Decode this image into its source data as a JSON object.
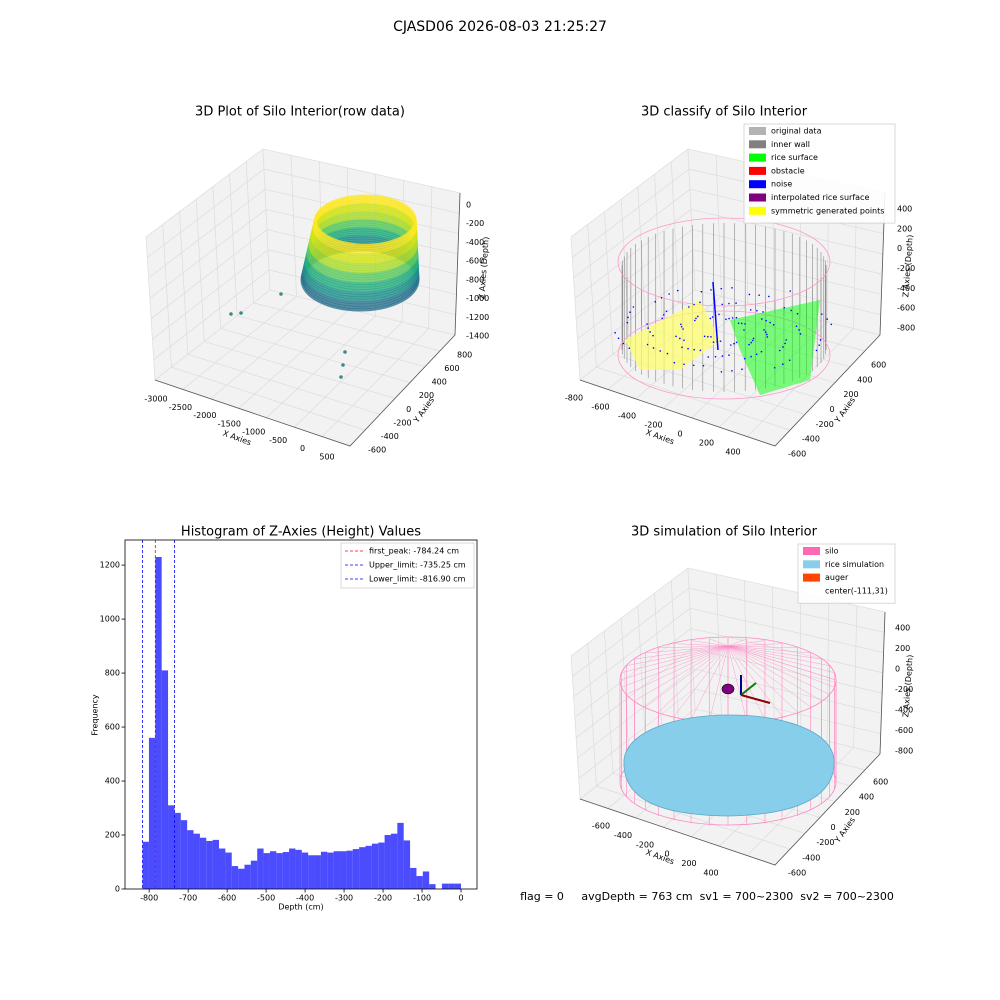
{
  "title": "CJASD06 2026-08-03 21:25:27",
  "chart_data": [
    {
      "type": "scatter3d",
      "title": "3D Plot of Silo Interior(row data)",
      "x_label": "X Axies",
      "y_label": "Y Axies",
      "z_label": "Z Axies (Depth)",
      "xticks": [
        -3000,
        -2500,
        -2000,
        -1500,
        -1000,
        -500,
        0,
        500
      ],
      "yticks": [
        -600,
        -400,
        -200,
        0,
        200,
        400,
        600,
        800
      ],
      "zticks": [
        0,
        -200,
        -400,
        -600,
        -800,
        -1000,
        -1200,
        -1400
      ]
    },
    {
      "type": "scatter3d",
      "title": "3D classify of Silo Interior",
      "x_label": "X Axies",
      "y_label": "Y Axies",
      "z_label": "Z Axies (Depth)",
      "xticks": [
        -800,
        -600,
        -400,
        -200,
        0,
        200,
        400
      ],
      "yticks": [
        -600,
        -400,
        -200,
        0,
        200,
        400,
        600
      ],
      "zticks": [
        400,
        200,
        0,
        -200,
        -400,
        -600,
        -800
      ],
      "legend": [
        {
          "name": "original data",
          "color": "#b3b3b3"
        },
        {
          "name": "inner wall",
          "color": "#808080"
        },
        {
          "name": "rice surface",
          "color": "#00ff00"
        },
        {
          "name": "obstacle",
          "color": "#ff0000"
        },
        {
          "name": "noise",
          "color": "#0000ff"
        },
        {
          "name": "interpolated rice surface",
          "color": "#800080"
        },
        {
          "name": "symmetric generated points",
          "color": "#ffff00"
        }
      ]
    },
    {
      "type": "histogram",
      "title": "Histogram of Z-Axies (Height) Values",
      "x_label": "Depth (cm)",
      "y_label": "Frequency",
      "color": "#0000ff",
      "bins": [
        -816.9,
        -800.56,
        -784.22,
        -767.89,
        -751.55,
        -735.21,
        -718.87,
        -702.53,
        -686.2,
        -669.86,
        -653.52,
        -637.18,
        -620.84,
        -604.51,
        -588.17,
        -571.83,
        -555.49,
        -539.15,
        -522.82,
        -506.48,
        -490.14,
        -473.8,
        -457.46,
        -441.13,
        -424.79,
        -408.45,
        -392.11,
        -375.77,
        -359.44,
        -343.1,
        -326.76,
        -310.42,
        -294.08,
        -277.75,
        -261.41,
        -245.07,
        -228.73,
        -212.39,
        -196.06,
        -179.72,
        -163.38,
        -147.04,
        -130.7,
        -114.37,
        -98.03,
        -81.69,
        -65.35,
        -49.01,
        -32.68,
        -16.34,
        0
      ],
      "values": [
        175,
        560,
        1230,
        810,
        310,
        282,
        255,
        218,
        205,
        190,
        178,
        182,
        150,
        135,
        85,
        75,
        90,
        105,
        150,
        133,
        140,
        133,
        137,
        150,
        145,
        135,
        125,
        125,
        138,
        135,
        140,
        140,
        142,
        148,
        155,
        160,
        168,
        172,
        200,
        205,
        245,
        180,
        78,
        48,
        65,
        18,
        0,
        20,
        20,
        20
      ],
      "xlim": [
        -862,
        41
      ],
      "ylim": [
        0,
        1293
      ],
      "xticks": [
        -800,
        -700,
        -600,
        -500,
        -400,
        -300,
        -200,
        -100,
        0
      ],
      "yticks": [
        0,
        200,
        400,
        600,
        800,
        1000,
        1200
      ],
      "lines": [
        {
          "label": "first_peak: -784.24 cm",
          "value": -784.24,
          "color": "#ff0000"
        },
        {
          "label": "Upper_limit: -735.25 cm",
          "value": -735.25,
          "color": "#0000ff"
        },
        {
          "label": "Lower_limit: -816.90 cm",
          "value": -816.9,
          "color": "#0000ff"
        }
      ],
      "legend_position": "upper right"
    },
    {
      "type": "surface3d",
      "title": "3D simulation of Silo Interior",
      "x_label": "X Axies",
      "y_label": "Y Axies",
      "z_label": "Z Axies (Depth)",
      "xticks": [
        -600,
        -400,
        -200,
        0,
        200,
        400
      ],
      "yticks": [
        -600,
        -400,
        -200,
        0,
        200,
        400,
        600
      ],
      "zticks": [
        400,
        200,
        0,
        -200,
        -400,
        -600,
        -800
      ],
      "legend": [
        {
          "name": "silo",
          "color": "#ff69b4"
        },
        {
          "name": "rice simulation",
          "color": "#87ceeb"
        },
        {
          "name": "auger",
          "color": "#ff4500"
        },
        {
          "name": "center(-111,31)"
        }
      ],
      "footer": "flag = 0     avgDepth = 763 cm  sv1 = 700~2300  sv2 = 700~2300"
    }
  ]
}
